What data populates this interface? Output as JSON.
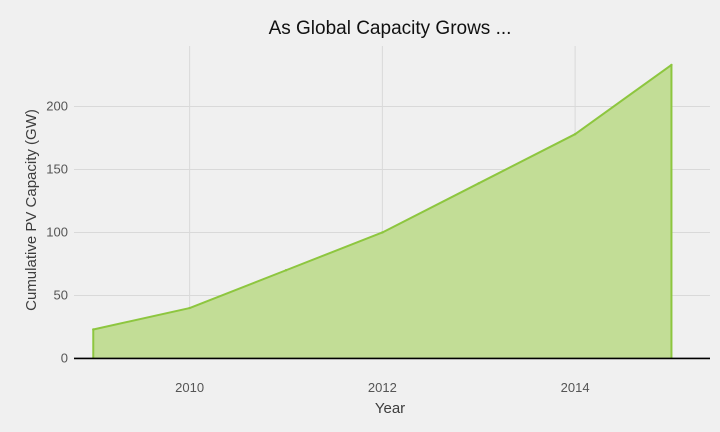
{
  "chart_data": {
    "type": "area",
    "title": "As Global Capacity Grows ...",
    "xlabel": "Year",
    "ylabel": "Cumulative PV Capacity (GW)",
    "x": [
      2009,
      2010,
      2011,
      2012,
      2013,
      2014,
      2015
    ],
    "series": [
      {
        "values": [
          23,
          40,
          70,
          100,
          139,
          178,
          233
        ]
      }
    ],
    "xlim": [
      2008.8,
      2015.4
    ],
    "ylim": [
      -6,
      248
    ],
    "x_ticks": [
      2010,
      2012,
      2014
    ],
    "y_ticks": [
      0,
      50,
      100,
      150,
      200
    ],
    "grid": true,
    "legend": "none",
    "colors": {
      "fill": "#c2dd96",
      "line": "#8dc63f",
      "baseline": "#000000",
      "background": "#f0f0f0",
      "grid": "#d9d9d9"
    }
  }
}
